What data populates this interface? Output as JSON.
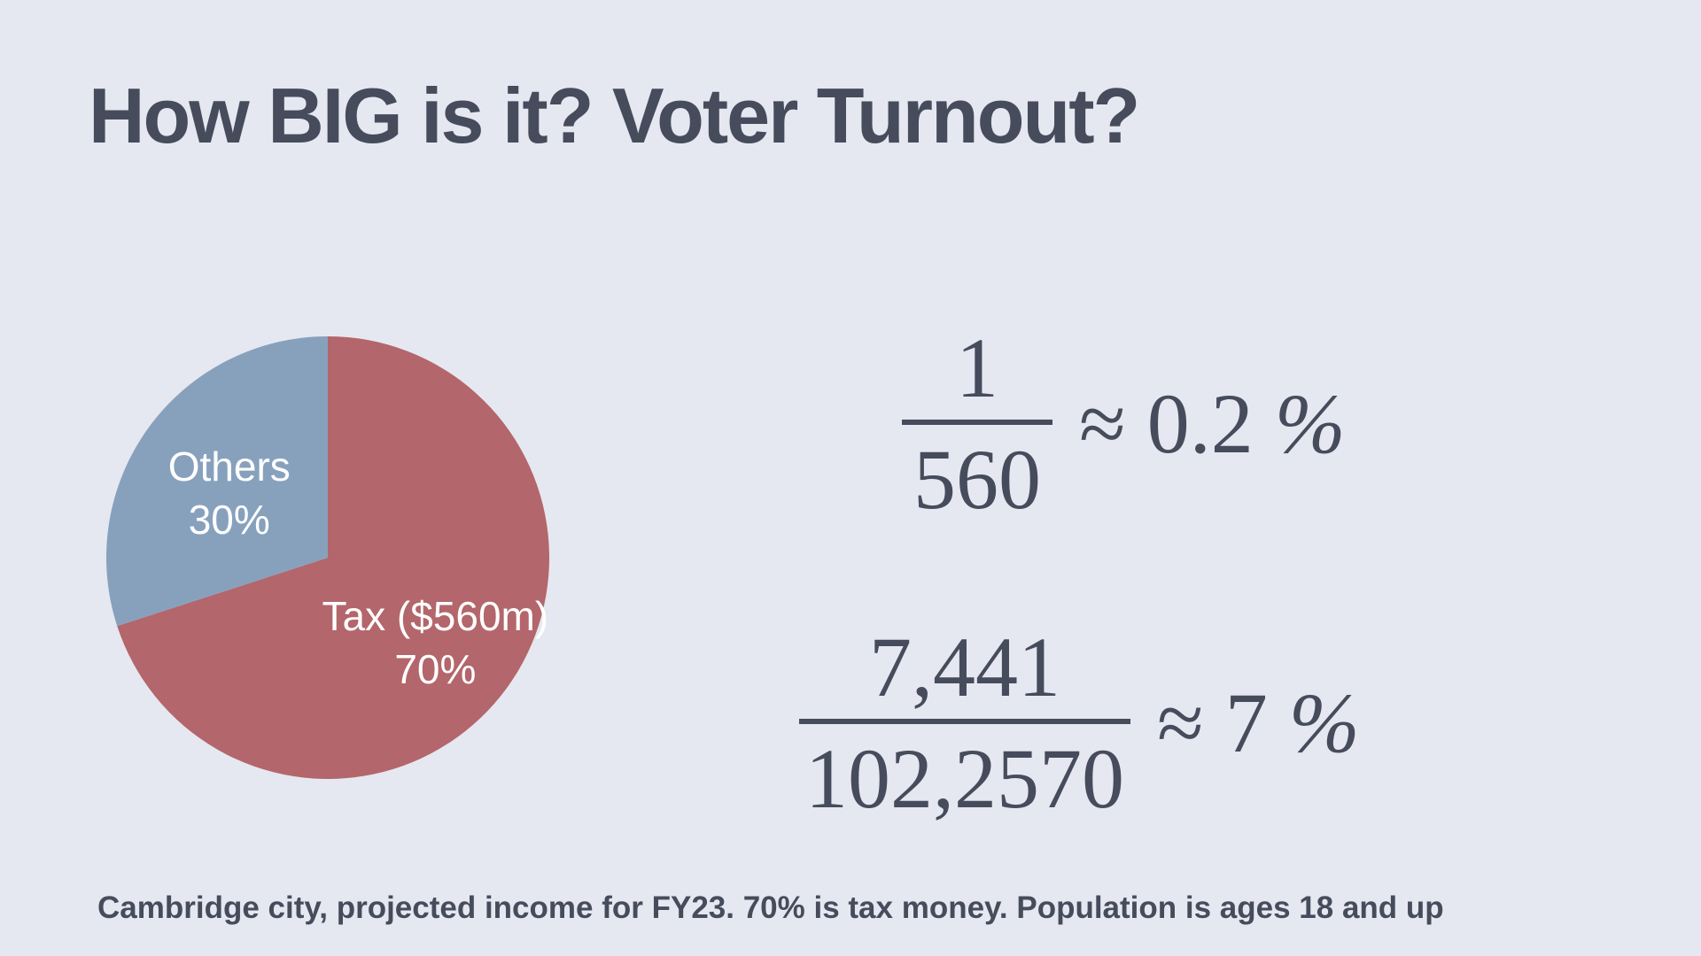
{
  "slide": {
    "title": "How BIG is it? Voter Turnout?",
    "footnote": "Cambridge city, projected income for FY23. 70% is tax money. Population is ages 18 and up"
  },
  "chart_data": {
    "type": "pie",
    "slices": [
      {
        "label": "Tax ($560m)",
        "value_label": "70%",
        "value": 70,
        "color": "#b3666b"
      },
      {
        "label": "Others",
        "value_label": "30%",
        "value": 30,
        "color": "#87a1bd"
      }
    ]
  },
  "formulas": [
    {
      "numerator": "1",
      "denominator": "560",
      "approx": "≈",
      "result_value": "0.2",
      "result_unit": "%"
    },
    {
      "numerator": "7,441",
      "denominator": "102,2570",
      "approx": "≈",
      "result_value": "7",
      "result_unit": "%"
    }
  ]
}
